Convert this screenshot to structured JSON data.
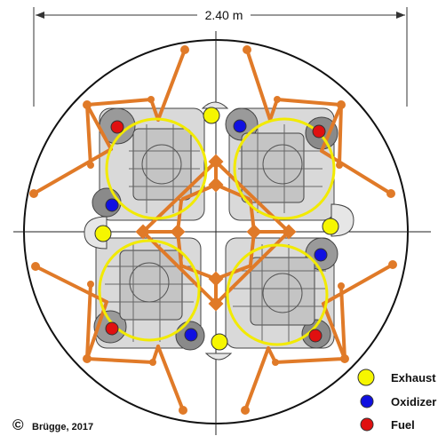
{
  "dimension": {
    "label": "2.40 m"
  },
  "legend": {
    "items": [
      {
        "key": "exhaust",
        "label": "Exhaust",
        "color": "#f6f600"
      },
      {
        "key": "oxidizer",
        "label": "Oxidizer",
        "color": "#1010e0"
      },
      {
        "key": "fuel",
        "label": "Fuel",
        "color": "#e01010"
      }
    ]
  },
  "credit": {
    "symbol": "©",
    "text": "Brügge, 2017"
  },
  "colors": {
    "strut": "#e07a28",
    "engine_ring": "#f2ea00",
    "outline": "#222222"
  }
}
